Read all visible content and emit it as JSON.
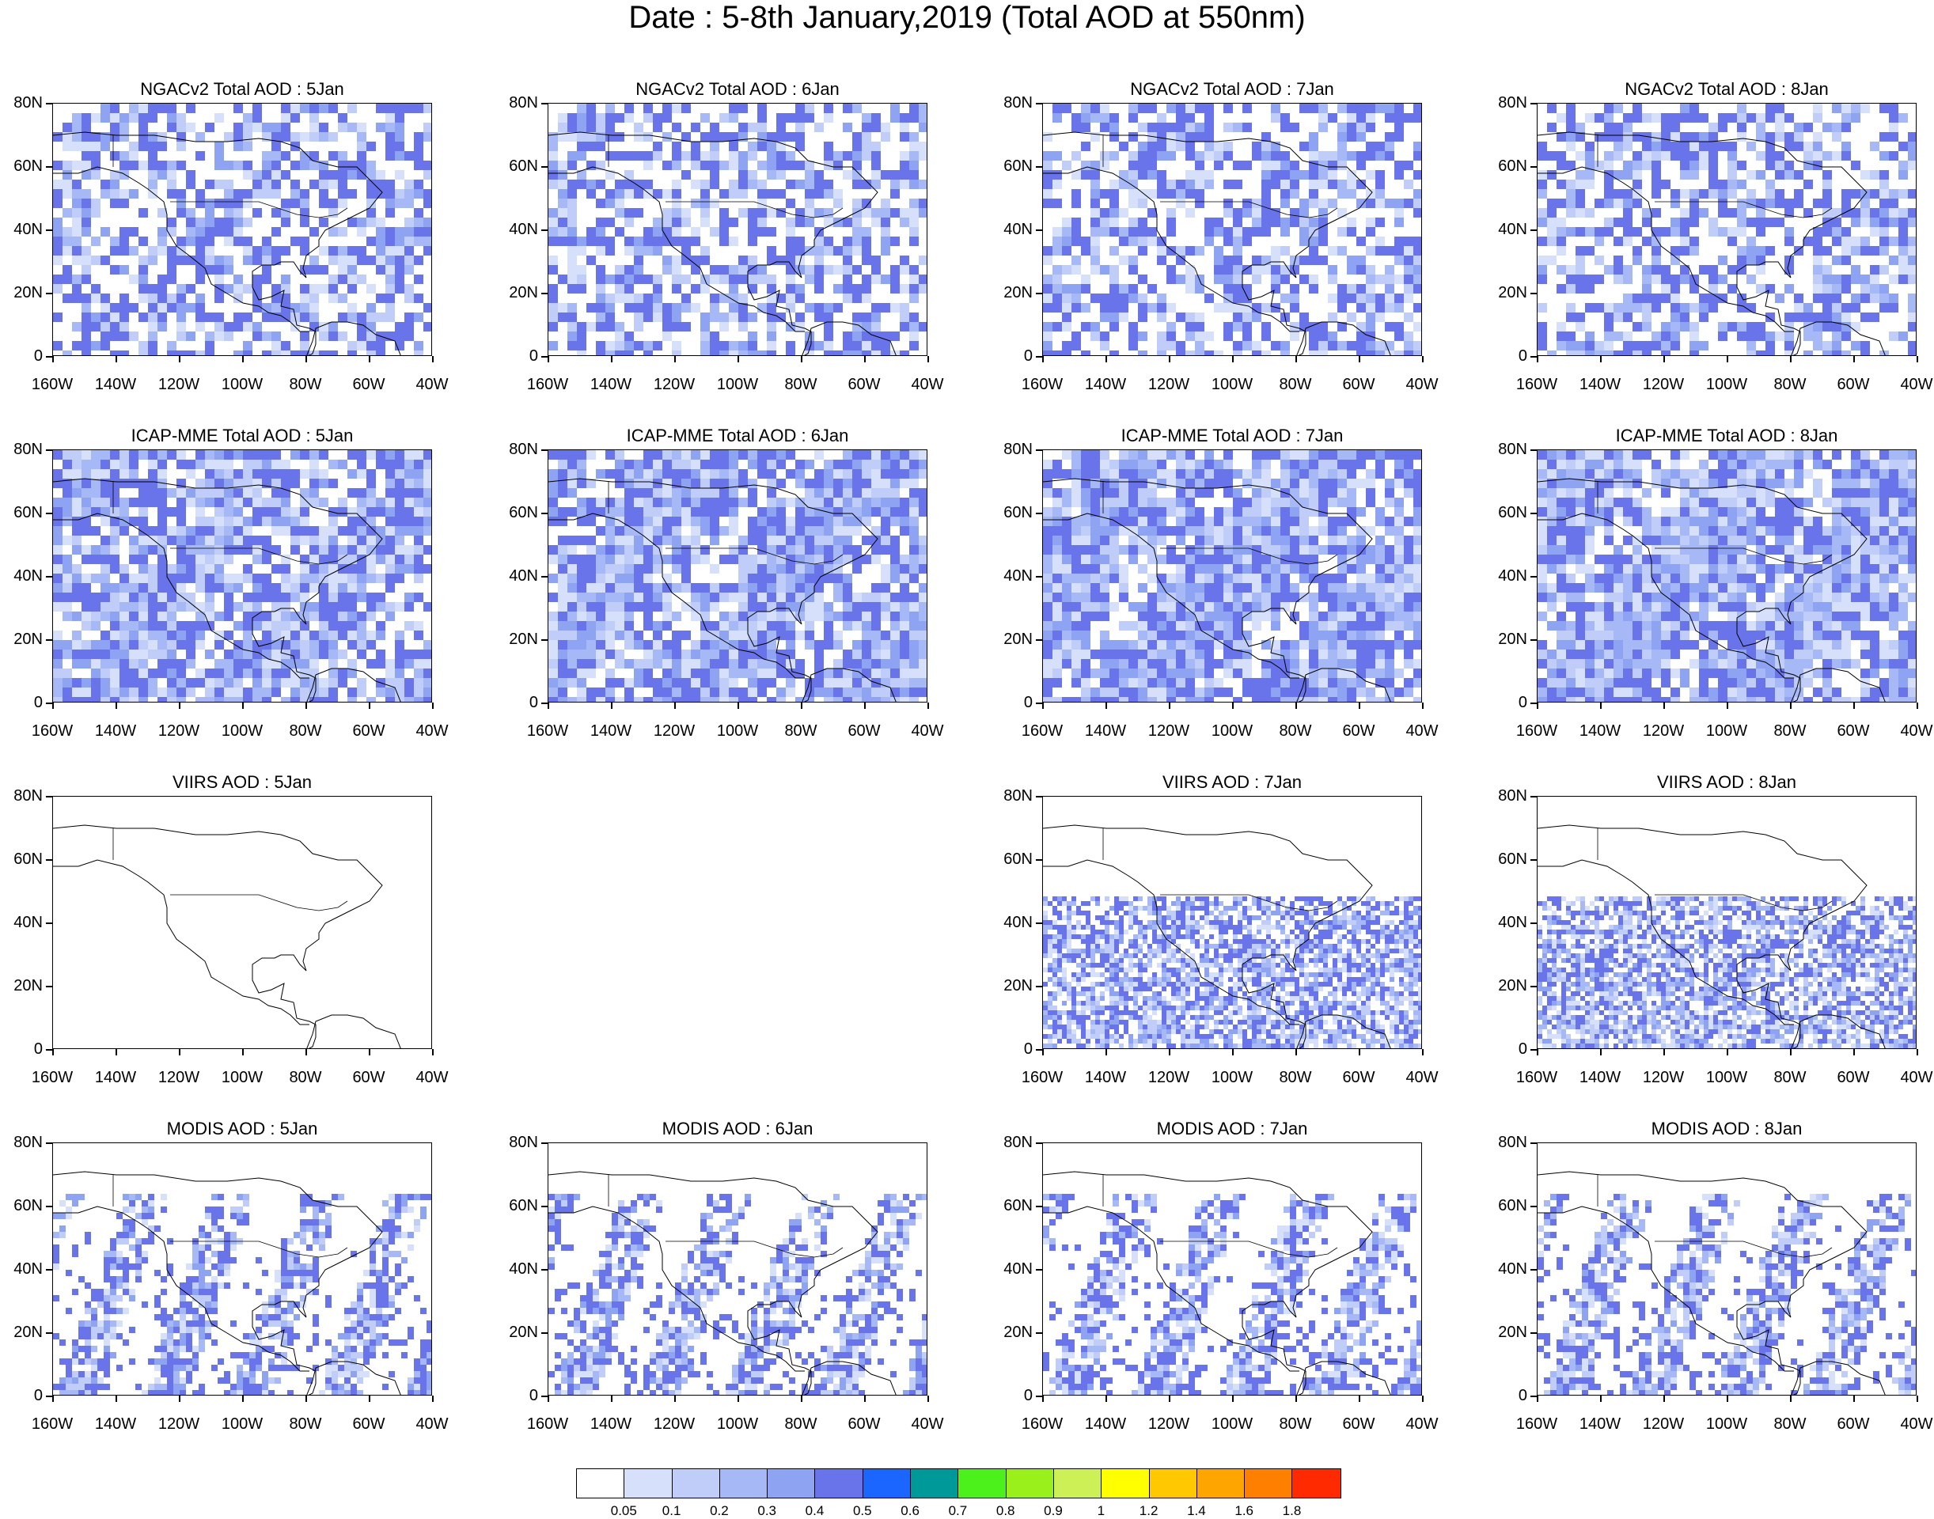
{
  "title": "Date : 5-8th January,2019 (Total AOD at 550nm)",
  "x_axis": {
    "ticks": [
      "160W",
      "140W",
      "120W",
      "100W",
      "80W",
      "60W",
      "40W"
    ]
  },
  "y_axis": {
    "ticks": [
      "80N",
      "60N",
      "40N",
      "20N",
      "0"
    ]
  },
  "panels": [
    {
      "id": "ngac-5",
      "title": "NGACv2 Total AOD : 5Jan",
      "row": 0,
      "col": 0,
      "intensity": 0.35,
      "style": "model"
    },
    {
      "id": "ngac-6",
      "title": "NGACv2 Total AOD : 6Jan",
      "row": 0,
      "col": 1,
      "intensity": 0.35,
      "style": "model"
    },
    {
      "id": "ngac-7",
      "title": "NGACv2 Total AOD : 7Jan",
      "row": 0,
      "col": 2,
      "intensity": 0.35,
      "style": "model"
    },
    {
      "id": "ngac-8",
      "title": "NGACv2 Total AOD : 8Jan",
      "row": 0,
      "col": 3,
      "intensity": 0.35,
      "style": "model"
    },
    {
      "id": "icap-5",
      "title": "ICAP-MME Total AOD : 5Jan",
      "row": 1,
      "col": 0,
      "intensity": 0.55,
      "style": "model"
    },
    {
      "id": "icap-6",
      "title": "ICAP-MME Total AOD : 6Jan",
      "row": 1,
      "col": 1,
      "intensity": 0.6,
      "style": "model"
    },
    {
      "id": "icap-7",
      "title": "ICAP-MME Total AOD : 7Jan",
      "row": 1,
      "col": 2,
      "intensity": 0.6,
      "style": "model"
    },
    {
      "id": "icap-8",
      "title": "ICAP-MME Total AOD : 8Jan",
      "row": 1,
      "col": 3,
      "intensity": 0.65,
      "style": "model"
    },
    {
      "id": "viirs-5",
      "title": "VIIRS AOD : 5Jan",
      "row": 2,
      "col": 0,
      "intensity": 0.0,
      "style": "empty"
    },
    {
      "id": "viirs-7",
      "title": "VIIRS AOD : 7Jan",
      "row": 2,
      "col": 2,
      "intensity": 0.5,
      "style": "satellite"
    },
    {
      "id": "viirs-8",
      "title": "VIIRS AOD : 8Jan",
      "row": 2,
      "col": 3,
      "intensity": 0.5,
      "style": "satellite"
    },
    {
      "id": "modis-5",
      "title": "MODIS AOD : 5Jan",
      "row": 3,
      "col": 0,
      "intensity": 0.5,
      "style": "swath"
    },
    {
      "id": "modis-6",
      "title": "MODIS AOD : 6Jan",
      "row": 3,
      "col": 1,
      "intensity": 0.5,
      "style": "swath"
    },
    {
      "id": "modis-7",
      "title": "MODIS AOD : 7Jan",
      "row": 3,
      "col": 2,
      "intensity": 0.5,
      "style": "swath"
    },
    {
      "id": "modis-8",
      "title": "MODIS AOD : 8Jan",
      "row": 3,
      "col": 3,
      "intensity": 0.5,
      "style": "swath"
    }
  ],
  "colorbar": {
    "colors": [
      "#ffffff",
      "#d6e0fb",
      "#bfcdf8",
      "#a6b8f5",
      "#8ea3f2",
      "#6a74ea",
      "#1a66ff",
      "#009999",
      "#4cf01a",
      "#99f01a",
      "#ccf055",
      "#ffff00",
      "#ffc800",
      "#ffa500",
      "#ff7f00",
      "#ff2a00"
    ],
    "labels": [
      "0.05",
      "0.1",
      "0.2",
      "0.3",
      "0.4",
      "0.5",
      "0.6",
      "0.7",
      "0.8",
      "0.9",
      "1",
      "1.2",
      "1.4",
      "1.6",
      "1.8"
    ]
  }
}
